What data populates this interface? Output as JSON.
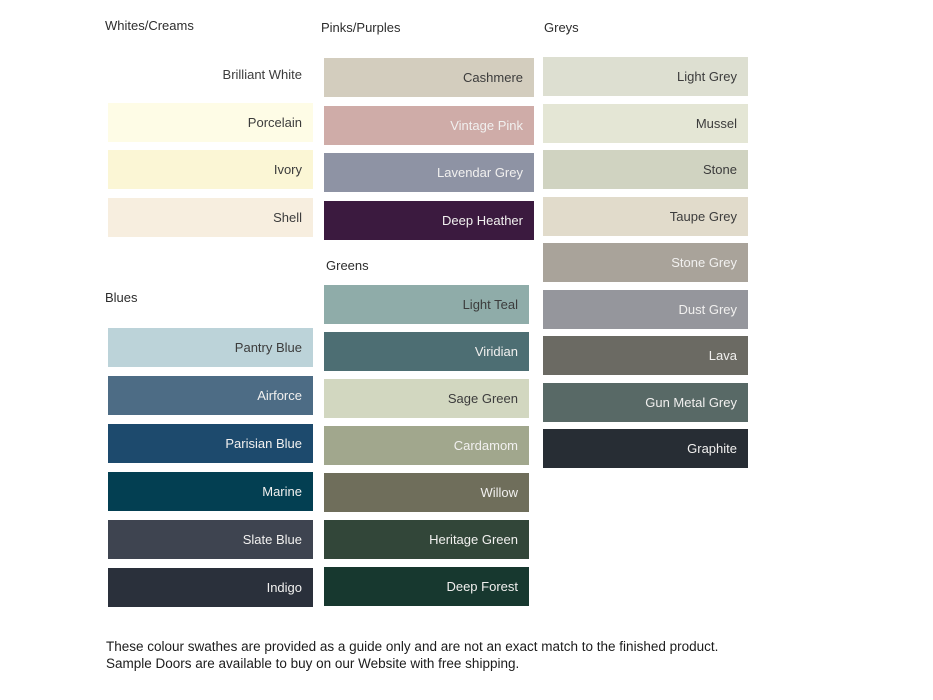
{
  "page": {
    "background": "#ffffff"
  },
  "chart_data": {
    "type": "table",
    "title": "Colour swatch guide",
    "groups": [
      {
        "title": "Whites/Creams",
        "swatches": [
          {
            "name": "Brilliant White",
            "color": "#ffffff",
            "label_tone": "dark"
          },
          {
            "name": "Porcelain",
            "color": "#fefce6",
            "label_tone": "dark"
          },
          {
            "name": "Ivory",
            "color": "#fbf6d5",
            "label_tone": "dark"
          },
          {
            "name": "Shell",
            "color": "#f7eedf",
            "label_tone": "dark"
          }
        ]
      },
      {
        "title": "Blues",
        "swatches": [
          {
            "name": "Pantry Blue",
            "color": "#bcd3d9",
            "label_tone": "dark"
          },
          {
            "name": "Airforce",
            "color": "#4d6c85",
            "label_tone": "light"
          },
          {
            "name": "Parisian Blue",
            "color": "#1d4a6d",
            "label_tone": "light"
          },
          {
            "name": "Marine",
            "color": "#033f52",
            "label_tone": "light"
          },
          {
            "name": "Slate Blue",
            "color": "#3e4450",
            "label_tone": "light"
          },
          {
            "name": "Indigo",
            "color": "#2a303b",
            "label_tone": "light"
          }
        ]
      },
      {
        "title": "Pinks/Purples",
        "swatches": [
          {
            "name": "Cashmere",
            "color": "#d3cdbe",
            "label_tone": "dark"
          },
          {
            "name": "Vintage Pink",
            "color": "#cfaca8",
            "label_tone": "light"
          },
          {
            "name": "Lavendar Grey",
            "color": "#8e93a4",
            "label_tone": "light"
          },
          {
            "name": "Deep Heather",
            "color": "#3b1a3f",
            "label_tone": "light"
          }
        ]
      },
      {
        "title": "Greens",
        "swatches": [
          {
            "name": "Light Teal",
            "color": "#8faca9",
            "label_tone": "dark"
          },
          {
            "name": "Viridian",
            "color": "#4d6e73",
            "label_tone": "light"
          },
          {
            "name": "Sage Green",
            "color": "#d2d7c0",
            "label_tone": "dark"
          },
          {
            "name": "Cardamom",
            "color": "#a1a78d",
            "label_tone": "light"
          },
          {
            "name": "Willow",
            "color": "#6f6e5b",
            "label_tone": "light"
          },
          {
            "name": "Heritage Green",
            "color": "#324639",
            "label_tone": "light"
          },
          {
            "name": "Deep Forest",
            "color": "#17382f",
            "label_tone": "light"
          }
        ]
      },
      {
        "title": "Greys",
        "swatches": [
          {
            "name": "Light Grey",
            "color": "#dddfd1",
            "label_tone": "dark"
          },
          {
            "name": "Mussel",
            "color": "#e4e6d5",
            "label_tone": "dark"
          },
          {
            "name": "Stone",
            "color": "#d0d3c1",
            "label_tone": "dark"
          },
          {
            "name": "Taupe Grey",
            "color": "#e1dbcb",
            "label_tone": "dark"
          },
          {
            "name": "Stone Grey",
            "color": "#a9a39a",
            "label_tone": "light"
          },
          {
            "name": "Dust Grey",
            "color": "#95969c",
            "label_tone": "light"
          },
          {
            "name": "Lava",
            "color": "#6b6a63",
            "label_tone": "light"
          },
          {
            "name": "Gun Metal Grey",
            "color": "#586966",
            "label_tone": "light"
          },
          {
            "name": "Graphite",
            "color": "#272d34",
            "label_tone": "light"
          }
        ]
      }
    ]
  },
  "footer": {
    "text": "These colour swathes are provided as a guide only and are not an exact match to the finished product.  Sample Doors are available to buy on our Website with free shipping."
  }
}
